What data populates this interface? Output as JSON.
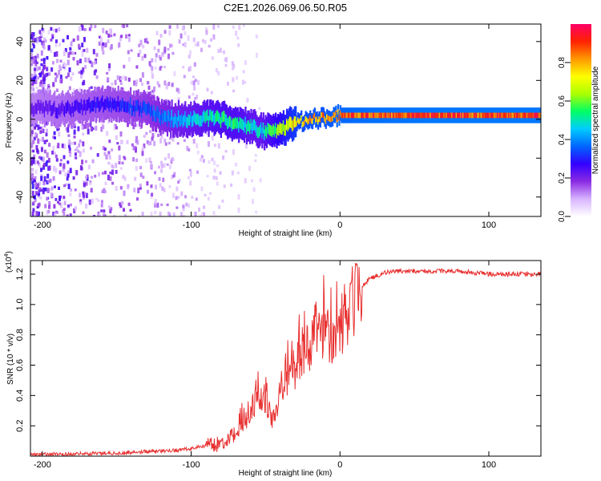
{
  "title": "C2E1.2026.069.06.50.R05",
  "chart_data": [
    {
      "type": "heatmap",
      "xlabel": "Height of straight line (km)",
      "ylabel": "Frequency (Hz)",
      "xlim": [
        -208,
        135
      ],
      "ylim": [
        -50,
        49
      ],
      "x_ticks": [
        -200,
        -100,
        0,
        100
      ],
      "y_ticks": [
        -40,
        -20,
        0,
        20,
        40
      ],
      "colorbar": {
        "label": "Normalized spectral amplitude",
        "range": [
          0,
          1
        ],
        "ticks": [
          "0.0",
          "0.2",
          "0.4",
          "0.6",
          "0.8"
        ],
        "colors": [
          "#ffffff",
          "#d8b4ff",
          "#8a2be2",
          "#3300ff",
          "#0066ff",
          "#00ccff",
          "#00ff66",
          "#aaff00",
          "#ffff00",
          "#ff9900",
          "#ff2200",
          "#ff0066"
        ]
      },
      "ridge": {
        "x": [
          -205,
          -190,
          -175,
          -160,
          -145,
          -130,
          -120,
          -110,
          -100,
          -90,
          -80,
          -70,
          -60,
          -52,
          -45,
          -38,
          -30,
          -20,
          -10,
          0,
          20,
          40,
          60,
          80,
          100,
          120,
          135
        ],
        "y": [
          6,
          5,
          6,
          8,
          7,
          5,
          1,
          0,
          0,
          1,
          0,
          -2,
          -4,
          -6,
          -6,
          -4,
          -2,
          0,
          1,
          2,
          2,
          2,
          2,
          2,
          2,
          2,
          2
        ],
        "amplitude": [
          0.22,
          0.25,
          0.28,
          0.3,
          0.32,
          0.35,
          0.4,
          0.45,
          0.48,
          0.52,
          0.55,
          0.55,
          0.5,
          0.5,
          0.6,
          0.7,
          0.8,
          0.85,
          0.85,
          0.9,
          0.92,
          0.93,
          0.94,
          0.94,
          0.94,
          0.94,
          0.94
        ]
      }
    },
    {
      "type": "line",
      "xlabel": "Height of straight line (km)",
      "ylabel": "SNR (10 * v/v)",
      "y_scale_label": "(x10",
      "y_scale_exp": "4",
      "y_scale_close": ")",
      "xlim": [
        -208,
        135
      ],
      "ylim": [
        0,
        1.29
      ],
      "x_ticks": [
        -200,
        -100,
        0,
        100
      ],
      "y_ticks": [
        0.2,
        0.4,
        0.6,
        0.8,
        1.0,
        1.2
      ],
      "color": "#e83030",
      "series": [
        {
          "name": "SNR",
          "x": [
            -208,
            -180,
            -150,
            -130,
            -110,
            -100,
            -90,
            -80,
            -70,
            -60,
            -55,
            -50,
            -45,
            -40,
            -35,
            -30,
            -25,
            -20,
            -15,
            -10,
            -5,
            0,
            5,
            10,
            15,
            20,
            30,
            40,
            60,
            80,
            90,
            100,
            110,
            120,
            135
          ],
          "y": [
            0.01,
            0.015,
            0.02,
            0.03,
            0.04,
            0.05,
            0.07,
            0.08,
            0.15,
            0.3,
            0.4,
            0.35,
            0.22,
            0.45,
            0.55,
            0.6,
            0.7,
            0.72,
            0.85,
            0.85,
            0.78,
            0.82,
            0.95,
            1.05,
            1.12,
            1.17,
            1.21,
            1.22,
            1.22,
            1.22,
            1.21,
            1.2,
            1.2,
            1.2,
            1.2
          ]
        }
      ]
    }
  ]
}
